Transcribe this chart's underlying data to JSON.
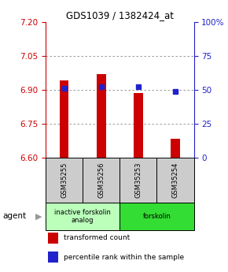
{
  "title": "GDS1039 / 1382424_at",
  "samples": [
    "GSM35255",
    "GSM35256",
    "GSM35253",
    "GSM35254"
  ],
  "transformed_counts": [
    6.94,
    6.97,
    6.885,
    6.685
  ],
  "percentile_ranks": [
    51,
    52,
    52,
    49
  ],
  "ylim_left": [
    6.6,
    7.2
  ],
  "ylim_right": [
    0,
    100
  ],
  "yticks_left": [
    6.6,
    6.75,
    6.9,
    7.05,
    7.2
  ],
  "yticks_right": [
    0,
    25,
    50,
    75,
    100
  ],
  "bar_color": "#cc0000",
  "dot_color": "#2222cc",
  "groups": [
    {
      "label": "inactive forskolin\nanalog",
      "samples": [
        0,
        1
      ],
      "color": "#bbffbb"
    },
    {
      "label": "forskolin",
      "samples": [
        2,
        3
      ],
      "color": "#33dd33"
    }
  ],
  "agent_label": "agent",
  "legend_bar_label": "transformed count",
  "legend_dot_label": "percentile rank within the sample",
  "grid_color": "#888888",
  "left_tick_color": "#cc0000",
  "right_tick_color": "#2222cc",
  "bar_width": 0.25,
  "baseline": 6.6
}
